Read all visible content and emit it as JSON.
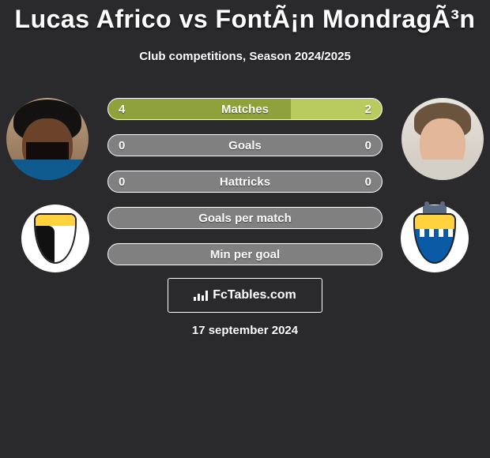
{
  "colors": {
    "background": "#2a2a2c",
    "bar_left_fill": "#8fa13a",
    "bar_right_fill": "#b9cb5f",
    "bar_empty_fill": "#808080",
    "border": "#ffffff",
    "text": "#ffffff"
  },
  "title": "Lucas Africo vs FontÃ¡n MondragÃ³n",
  "season": "Club competitions, Season 2024/2025",
  "branding": "FcTables.com",
  "date": "17 september 2024",
  "bars": [
    {
      "label": "Matches",
      "left": "4",
      "right": "2",
      "left_frac": 0.667,
      "right_frac": 0.333,
      "show_values": true
    },
    {
      "label": "Goals",
      "left": "0",
      "right": "0",
      "left_frac": 0.0,
      "right_frac": 0.0,
      "show_values": true
    },
    {
      "label": "Hattricks",
      "left": "0",
      "right": "0",
      "left_frac": 0.0,
      "right_frac": 0.0,
      "show_values": true
    },
    {
      "label": "Goals per match",
      "left": "",
      "right": "",
      "left_frac": 0.0,
      "right_frac": 0.0,
      "show_values": false
    },
    {
      "label": "Min per goal",
      "left": "",
      "right": "",
      "left_frac": 0.0,
      "right_frac": 0.0,
      "show_values": false
    }
  ]
}
